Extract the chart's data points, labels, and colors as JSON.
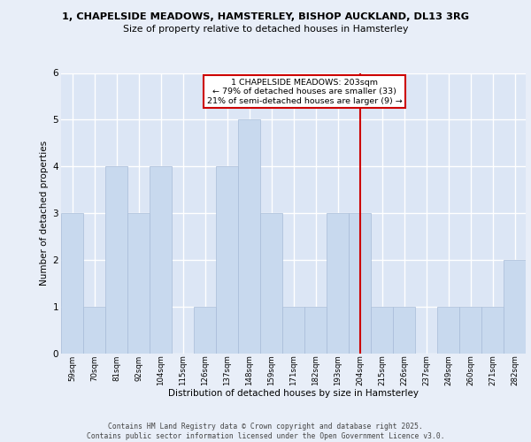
{
  "title_line1": "1, CHAPELSIDE MEADOWS, HAMSTERLEY, BISHOP AUCKLAND, DL13 3RG",
  "title_line2": "Size of property relative to detached houses in Hamsterley",
  "xlabel": "Distribution of detached houses by size in Hamsterley",
  "ylabel": "Number of detached properties",
  "categories": [
    "59sqm",
    "70sqm",
    "81sqm",
    "92sqm",
    "104sqm",
    "115sqm",
    "126sqm",
    "137sqm",
    "148sqm",
    "159sqm",
    "171sqm",
    "182sqm",
    "193sqm",
    "204sqm",
    "215sqm",
    "226sqm",
    "237sqm",
    "249sqm",
    "260sqm",
    "271sqm",
    "282sqm"
  ],
  "values": [
    3,
    1,
    4,
    3,
    4,
    0,
    1,
    4,
    5,
    3,
    1,
    1,
    3,
    3,
    1,
    1,
    0,
    1,
    1,
    1,
    2
  ],
  "bar_color": "#c8d9ee",
  "bar_edge_color": "#a8bcd8",
  "vline_index": 13,
  "vline_color": "#cc0000",
  "annotation_text": "1 CHAPELSIDE MEADOWS: 203sqm\n← 79% of detached houses are smaller (33)\n21% of semi-detached houses are larger (9) →",
  "annotation_box_edgecolor": "#cc0000",
  "ylim": [
    0,
    6
  ],
  "yticks": [
    0,
    1,
    2,
    3,
    4,
    5,
    6
  ],
  "plot_bg": "#dce6f5",
  "fig_bg": "#e8eef8",
  "grid_color": "#ffffff",
  "footer_line1": "Contains HM Land Registry data © Crown copyright and database right 2025.",
  "footer_line2": "Contains public sector information licensed under the Open Government Licence v3.0."
}
